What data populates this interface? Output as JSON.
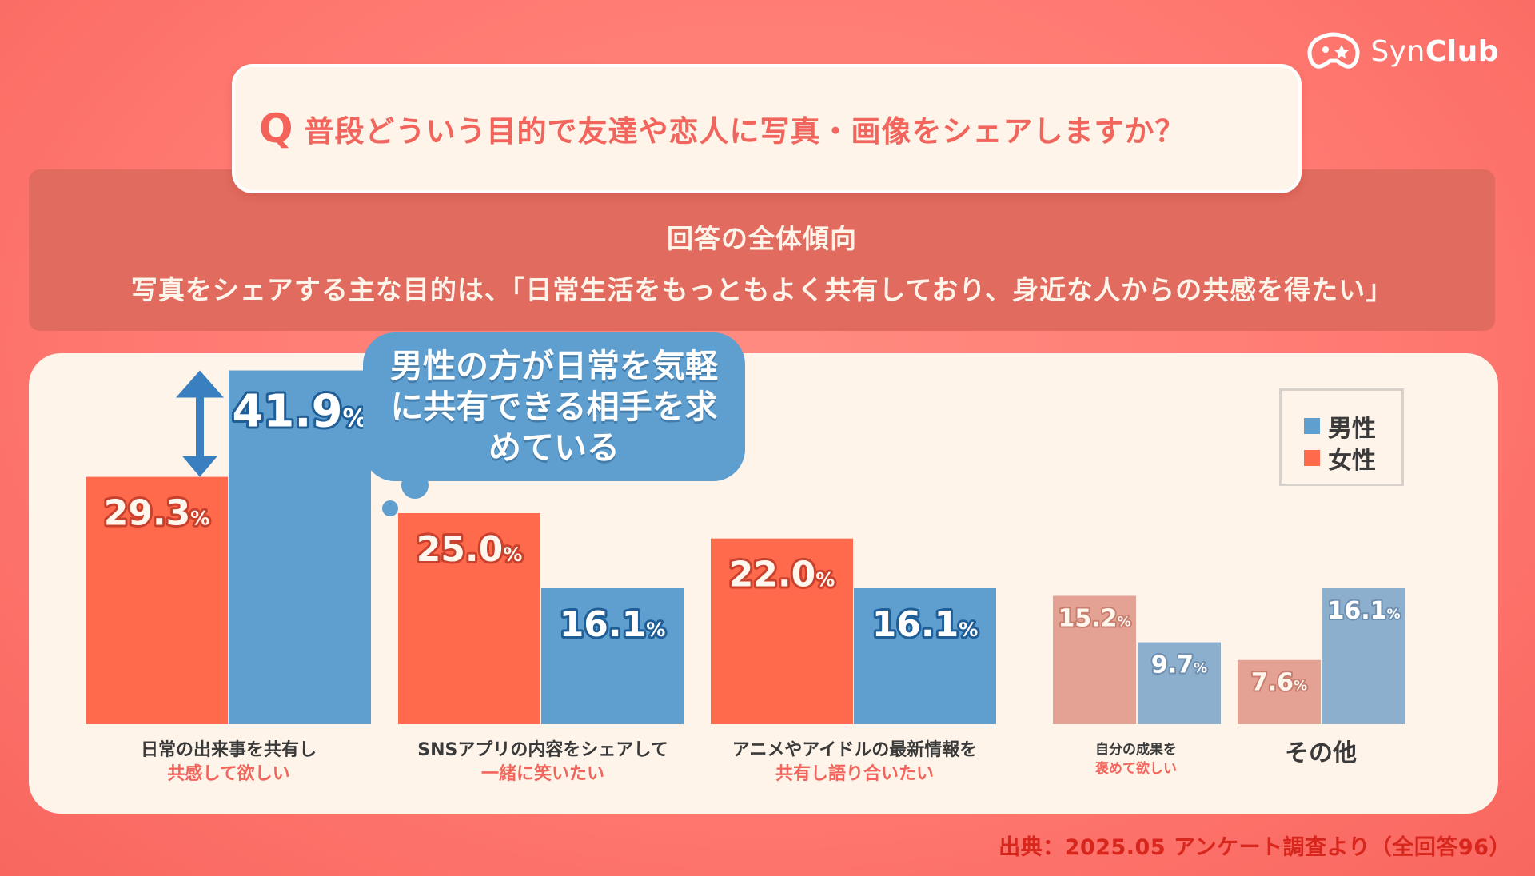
{
  "brand": {
    "name_light": "Syn",
    "name_bold": "Club"
  },
  "question": {
    "mark": "Q",
    "text": "普段どういう目的で友達や恋人に写真・画像をシェアしますか？"
  },
  "summary": {
    "title": "回答の全体傾向",
    "text": "写真をシェアする主な目的は、「日常生活をもっともよく共有しており、身近な人からの共感を得たい」"
  },
  "callout": {
    "text": "男性の方が日常を気軽に共有できる相手を求めている"
  },
  "legend": [
    {
      "name": "男性",
      "color": "#5e9fd0"
    },
    {
      "name": "女性",
      "color": "#ff6a4d"
    }
  ],
  "categories": [
    {
      "line1": "日常の出来事を共有し",
      "line2": "共感して欲しい"
    },
    {
      "line1": "SNSアプリの内容をシェアして",
      "line2": "一緒に笑いたい"
    },
    {
      "line1": "アニメやアイドルの最新情報を",
      "line2": "共有し語り合いたい"
    },
    {
      "line1": "自分の成果を",
      "line2": "褒めて欲しい"
    },
    {
      "line1": "その他",
      "line2": ""
    }
  ],
  "chart_data": {
    "type": "bar",
    "categories": [
      "日常の出来事を共有し共感して欲しい",
      "SNSアプリの内容をシェアして一緒に笑いたい",
      "アニメやアイドルの最新情報を共有し語り合いたい",
      "自分の成果を褒めて欲しい",
      "その他"
    ],
    "series": [
      {
        "name": "女性",
        "values": [
          29.3,
          25.0,
          22.0,
          15.2,
          7.6
        ],
        "color": "#ff6a4d",
        "muted_color": "#e3a293"
      },
      {
        "name": "男性",
        "values": [
          41.9,
          16.1,
          16.1,
          9.7,
          16.1
        ],
        "color": "#5e9fd0",
        "muted_color": "#8cafce"
      }
    ],
    "value_suffix": "%",
    "muted_categories": [
      3,
      4
    ],
    "legend_position": "top-right",
    "grid": false
  },
  "source": "出典：2025.05 アンケート調査より（全回答96）"
}
